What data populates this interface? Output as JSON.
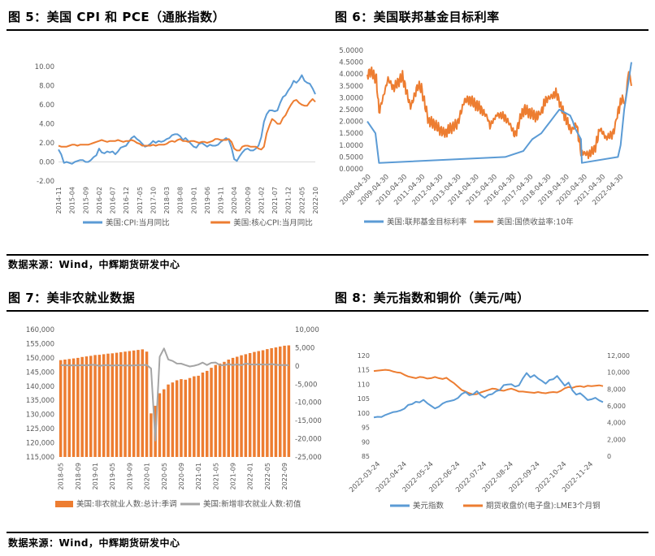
{
  "colors": {
    "blue": "#5B9BD5",
    "orange": "#ED7D31",
    "grey": "#A5A5A5",
    "axis": "#595959"
  },
  "figures": {
    "fig5": {
      "title": "图 5：美国 CPI 和 PCE（通胀指数）"
    },
    "fig6": {
      "title": "图 6：美国联邦基金目标利率"
    },
    "fig7": {
      "title": "图 7：美非农就业数据"
    },
    "fig8": {
      "title": "图 8：美元指数和铜价（美元/吨）"
    }
  },
  "sources": {
    "top": "数据来源：Wind，中辉期货研发中心",
    "bottom": "数据来源：Wind，中辉期货研发中心"
  },
  "chart_data": [
    {
      "id": "fig5",
      "type": "line",
      "title": "美国CPI和PCE（通胀指数）",
      "ylim": [
        -2,
        10
      ],
      "yticks": [
        "-2.00",
        "0.00",
        "2.00",
        "4.00",
        "6.00",
        "8.00",
        "10.00"
      ],
      "xticks": [
        "2014-11",
        "2015-04",
        "2015-09",
        "2016-02",
        "2016-07",
        "2016-12",
        "2017-05",
        "2017-10",
        "2018-03",
        "2018-08",
        "2019-01",
        "2019-06",
        "2019-11",
        "2020-04",
        "2020-09",
        "2021-02",
        "2021-07",
        "2021-12",
        "2022-05",
        "2022-10"
      ],
      "x_start": "2014-11",
      "step": "month",
      "series": [
        {
          "name": "美国:CPI:当月同比",
          "color": "#5B9BD5",
          "values": [
            1.3,
            0.8,
            -0.1,
            0.0,
            -0.1,
            -0.2,
            0.0,
            0.1,
            0.2,
            0.2,
            0.0,
            0.0,
            0.2,
            0.5,
            0.7,
            1.4,
            1.0,
            0.9,
            1.1,
            1.0,
            1.1,
            0.8,
            1.1,
            1.5,
            1.6,
            1.7,
            2.1,
            2.5,
            2.7,
            2.4,
            2.2,
            1.9,
            1.6,
            1.7,
            1.9,
            2.2,
            2.0,
            2.2,
            2.1,
            2.2,
            2.4,
            2.5,
            2.8,
            2.9,
            2.9,
            2.7,
            2.3,
            2.5,
            2.2,
            1.9,
            1.6,
            1.5,
            1.9,
            2.0,
            1.8,
            1.6,
            1.8,
            1.7,
            1.7,
            1.8,
            2.1,
            2.3,
            2.5,
            2.3,
            1.5,
            0.3,
            0.1,
            0.6,
            1.0,
            1.3,
            1.4,
            1.2,
            1.2,
            1.4,
            1.7,
            2.6,
            4.2,
            5.0,
            5.4,
            5.4,
            5.3,
            5.4,
            6.2,
            6.8,
            7.0,
            7.5,
            7.9,
            8.5,
            8.3,
            8.6,
            9.1,
            8.5,
            8.3,
            8.2,
            7.7,
            7.1
          ]
        },
        {
          "name": "美国:核心CPI:当月同比",
          "color": "#ED7D31",
          "values": [
            1.7,
            1.6,
            1.6,
            1.6,
            1.7,
            1.8,
            1.8,
            1.7,
            1.8,
            1.8,
            1.8,
            1.8,
            1.9,
            2.0,
            2.1,
            2.2,
            2.3,
            2.2,
            2.1,
            2.2,
            2.2,
            2.2,
            2.3,
            2.2,
            2.1,
            2.2,
            2.2,
            2.3,
            2.2,
            2.0,
            1.9,
            1.7,
            1.7,
            1.7,
            1.7,
            1.8,
            1.7,
            1.8,
            1.8,
            1.8,
            1.9,
            2.1,
            2.2,
            2.1,
            2.3,
            2.4,
            2.2,
            2.2,
            2.1,
            2.2,
            2.2,
            2.1,
            2.0,
            2.1,
            2.1,
            2.0,
            2.1,
            2.2,
            2.4,
            2.4,
            2.3,
            2.3,
            2.3,
            2.4,
            2.1,
            1.4,
            1.2,
            1.2,
            1.6,
            1.7,
            1.7,
            1.6,
            1.6,
            1.6,
            1.4,
            1.3,
            1.6,
            3.0,
            3.8,
            4.5,
            4.3,
            4.0,
            4.0,
            4.6,
            4.9,
            5.5,
            6.0,
            6.4,
            6.5,
            6.2,
            6.0,
            5.9,
            5.9,
            6.3,
            6.6,
            6.3
          ]
        }
      ]
    },
    {
      "id": "fig6",
      "type": "line",
      "title": "美国联邦基金目标利率",
      "ylim": [
        0,
        5
      ],
      "yticks": [
        "0.0000",
        "0.5000",
        "1.0000",
        "1.5000",
        "2.0000",
        "2.5000",
        "3.0000",
        "3.5000",
        "4.0000",
        "4.5000",
        "5.0000"
      ],
      "xticks": [
        "2008-04-30",
        "2009-04-30",
        "2010-04-30",
        "2011-04-30",
        "2012-04-30",
        "2013-04-30",
        "2014-04-30",
        "2015-04-30",
        "2016-04-30",
        "2017-04-30",
        "2018-04-30",
        "2019-04-30",
        "2020-04-30",
        "2021-04-30",
        "2022-04-30"
      ],
      "series": [
        {
          "name": "美国:联邦基金目标利率",
          "color": "#5B9BD5",
          "points": [
            [
              2008.3,
              2.0
            ],
            [
              2008.75,
              1.5
            ],
            [
              2008.95,
              0.25
            ],
            [
              2015.95,
              0.5
            ],
            [
              2016.95,
              0.75
            ],
            [
              2017.2,
              1.0
            ],
            [
              2017.45,
              1.25
            ],
            [
              2017.95,
              1.5
            ],
            [
              2018.2,
              1.75
            ],
            [
              2018.45,
              2.0
            ],
            [
              2018.7,
              2.25
            ],
            [
              2018.95,
              2.5
            ],
            [
              2019.55,
              2.25
            ],
            [
              2019.7,
              2.0
            ],
            [
              2019.8,
              1.75
            ],
            [
              2020.15,
              1.25
            ],
            [
              2020.2,
              0.25
            ],
            [
              2022.2,
              0.5
            ],
            [
              2022.35,
              1.0
            ],
            [
              2022.45,
              1.75
            ],
            [
              2022.55,
              2.5
            ],
            [
              2022.7,
              3.25
            ],
            [
              2022.85,
              4.0
            ],
            [
              2022.95,
              4.5
            ]
          ]
        },
        {
          "name": "美国:国债收益率:10年",
          "color": "#ED7D31",
          "points": [
            [
              2008.3,
              4.0
            ],
            [
              2008.5,
              4.1
            ],
            [
              2008.8,
              3.8
            ],
            [
              2008.95,
              2.4
            ],
            [
              2009.1,
              2.8
            ],
            [
              2009.45,
              3.8
            ],
            [
              2009.75,
              3.4
            ],
            [
              2010.25,
              3.9
            ],
            [
              2010.7,
              2.6
            ],
            [
              2011.1,
              3.5
            ],
            [
              2011.3,
              3.4
            ],
            [
              2011.7,
              2.0
            ],
            [
              2012.0,
              1.9
            ],
            [
              2012.4,
              1.6
            ],
            [
              2012.6,
              1.5
            ],
            [
              2012.9,
              1.7
            ],
            [
              2013.3,
              1.9
            ],
            [
              2013.7,
              2.9
            ],
            [
              2014.0,
              2.9
            ],
            [
              2014.5,
              2.6
            ],
            [
              2014.95,
              2.2
            ],
            [
              2015.1,
              1.8
            ],
            [
              2015.5,
              2.3
            ],
            [
              2015.9,
              2.2
            ],
            [
              2016.2,
              1.9
            ],
            [
              2016.5,
              1.4
            ],
            [
              2016.85,
              2.3
            ],
            [
              2017.0,
              2.5
            ],
            [
              2017.7,
              2.2
            ],
            [
              2017.95,
              2.4
            ],
            [
              2018.2,
              2.9
            ],
            [
              2018.8,
              3.2
            ],
            [
              2019.0,
              2.7
            ],
            [
              2019.6,
              1.6
            ],
            [
              2019.9,
              1.9
            ],
            [
              2020.15,
              0.7
            ],
            [
              2020.6,
              0.6
            ],
            [
              2020.95,
              0.9
            ],
            [
              2021.2,
              1.7
            ],
            [
              2021.55,
              1.3
            ],
            [
              2021.95,
              1.5
            ],
            [
              2022.2,
              2.4
            ],
            [
              2022.45,
              3.0
            ],
            [
              2022.6,
              2.7
            ],
            [
              2022.8,
              4.2
            ],
            [
              2022.95,
              3.5
            ]
          ]
        }
      ]
    },
    {
      "id": "fig7",
      "type": "bar",
      "title": "美非农就业数据",
      "ylim_left": [
        115000,
        160000
      ],
      "ylim_right": [
        -25000,
        10000
      ],
      "yticks_left": [
        "115,000",
        "120,000",
        "125,000",
        "130,000",
        "135,000",
        "140,000",
        "145,000",
        "150,000",
        "155,000",
        "160,000"
      ],
      "yticks_right": [
        "-25,000",
        "-20,000",
        "-15,000",
        "-10,000",
        "-5,000",
        "0",
        "5,000",
        "10,000"
      ],
      "xticks": [
        "2018-05",
        "2018-09",
        "2019-01",
        "2019-05",
        "2019-09",
        "2020-01",
        "2020-05",
        "2020-09",
        "2021-01",
        "2021-05",
        "2021-09",
        "2022-01",
        "2022-05",
        "2022-09"
      ],
      "x_start": "2018-05",
      "step": "month",
      "series": [
        {
          "name": "美国:非农就业人数:总计:季调",
          "color": "#ED7D31",
          "axis": "left",
          "values": [
            149200,
            149400,
            149600,
            149800,
            150000,
            150300,
            150500,
            150700,
            151000,
            151100,
            151300,
            151500,
            151600,
            151800,
            152000,
            152200,
            152400,
            152600,
            152800,
            153000,
            152200,
            130400,
            133100,
            137500,
            138900,
            140600,
            141300,
            142100,
            142500,
            142300,
            142900,
            143500,
            143700,
            144800,
            145400,
            146500,
            147500,
            148000,
            148600,
            149400,
            150000,
            150400,
            150900,
            151300,
            151700,
            152100,
            152400,
            152700,
            153100,
            153400,
            153700,
            154000,
            154300,
            154400
          ]
        },
        {
          "name": "美国:新增非农就业人数:初值",
          "color": "#A5A5A5",
          "axis": "right",
          "values": [
            223,
            213,
            157,
            201,
            134,
            250,
            155,
            312,
            304,
            20,
            196,
            263,
            75,
            224,
            164,
            130,
            128,
            136,
            266,
            225,
            273,
            -701,
            -20500,
            2509,
            4800,
            1763,
            1371,
            661,
            638,
            245,
            -140,
            49,
            379,
            916,
            266,
            850,
            943,
            235,
            194,
            531,
            210,
            467,
            199,
            678,
            431,
            372,
            428,
            390,
            372,
            528,
            315,
            263,
            261,
            223
          ]
        }
      ]
    },
    {
      "id": "fig8",
      "type": "line",
      "title": "美元指数和铜价（美元/吨）",
      "ylim_left": [
        85,
        120
      ],
      "ylim_right": [
        0,
        12000
      ],
      "yticks_left": [
        "85",
        "90",
        "95",
        "100",
        "105",
        "110",
        "115",
        "120"
      ],
      "yticks_right": [
        "0",
        "2,000",
        "4,000",
        "6,000",
        "8,000",
        "10,000",
        "12,000"
      ],
      "xticks": [
        "2022-03-24",
        "2022-04-24",
        "2022-05-24",
        "2022-06-24",
        "2022-07-24",
        "2022-08-24",
        "2022-09-24",
        "2022-10-24",
        "2022-11-24"
      ],
      "series": [
        {
          "name": "美元指数",
          "color": "#5B9BD5",
          "axis": "left",
          "values": [
            98.5,
            98.7,
            98.6,
            99.3,
            99.8,
            100.3,
            100.5,
            100.9,
            101.5,
            102.8,
            103.1,
            103.9,
            103.7,
            104.6,
            103.4,
            102.5,
            101.6,
            102.2,
            103.3,
            103.9,
            104.2,
            104.5,
            105.2,
            106.6,
            107.3,
            106.2,
            106.5,
            107.6,
            106.2,
            105.3,
            106.3,
            106.6,
            107.6,
            108.0,
            109.7,
            109.9,
            110.0,
            109.2,
            109.6,
            112.0,
            113.9,
            112.4,
            113.2,
            112.0,
            111.2,
            110.2,
            111.5,
            111.8,
            112.9,
            111.2,
            109.5,
            110.6,
            107.9,
            106.4,
            106.9,
            105.8,
            104.5,
            104.8,
            105.3,
            104.4,
            103.8
          ]
        },
        {
          "name": "期货收盘价(电子盘):LME3个月铜",
          "color": "#ED7D31",
          "axis": "right",
          "values": [
            10150,
            10200,
            10250,
            10300,
            10250,
            10100,
            10000,
            9950,
            9700,
            9500,
            9400,
            9300,
            9450,
            9400,
            9250,
            9300,
            9450,
            9300,
            9200,
            9350,
            9000,
            8700,
            8300,
            7900,
            7700,
            7500,
            7350,
            7400,
            7600,
            7750,
            7900,
            8050,
            8000,
            7850,
            7800,
            7950,
            8050,
            7900,
            7700,
            7700,
            7650,
            7600,
            7550,
            7650,
            7550,
            7500,
            7600,
            7650,
            7600,
            7800,
            8100,
            8250,
            8150,
            8300,
            8350,
            8250,
            8400,
            8350,
            8400,
            8450,
            8350
          ]
        }
      ]
    }
  ]
}
